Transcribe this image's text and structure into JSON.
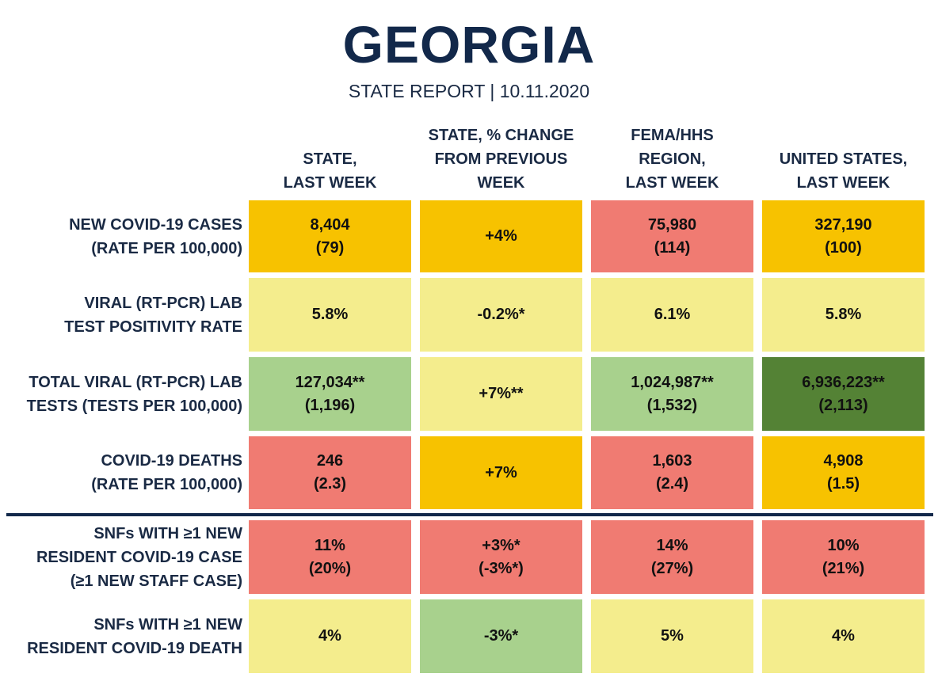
{
  "title": "GEORGIA",
  "subtitle": "STATE REPORT | 10.11.2020",
  "columns": [
    "STATE,\nLAST WEEK",
    "STATE, % CHANGE\nFROM PREVIOUS\nWEEK",
    "FEMA/HHS\nREGION,\nLAST WEEK",
    "UNITED STATES,\nLAST WEEK"
  ],
  "rows": [
    {
      "label": "NEW COVID-19 CASES\n(RATE PER 100,000)",
      "cells": [
        {
          "text": "8,404\n(79)",
          "color": "#f7c200"
        },
        {
          "text": "+4%",
          "color": "#f7c200"
        },
        {
          "text": "75,980\n(114)",
          "color": "#f07b72"
        },
        {
          "text": "327,190\n(100)",
          "color": "#f7c200"
        }
      ]
    },
    {
      "label": "VIRAL (RT-PCR) LAB\nTEST POSITIVITY RATE",
      "cells": [
        {
          "text": "5.8%",
          "color": "#f4ed8d"
        },
        {
          "text": "-0.2%*",
          "color": "#f4ed8d"
        },
        {
          "text": "6.1%",
          "color": "#f4ed8d"
        },
        {
          "text": "5.8%",
          "color": "#f4ed8d"
        }
      ]
    },
    {
      "label": "TOTAL VIRAL (RT-PCR) LAB\nTESTS (TESTS PER 100,000)",
      "cells": [
        {
          "text": "127,034**\n(1,196)",
          "color": "#a8d18d"
        },
        {
          "text": "+7%**",
          "color": "#f4ed8d"
        },
        {
          "text": "1,024,987**\n(1,532)",
          "color": "#a8d18d"
        },
        {
          "text": "6,936,223**\n(2,113)",
          "color": "#548235"
        }
      ]
    },
    {
      "label": "COVID-19 DEATHS\n(RATE PER 100,000)",
      "cells": [
        {
          "text": "246\n(2.3)",
          "color": "#f07b72"
        },
        {
          "text": "+7%",
          "color": "#f7c200"
        },
        {
          "text": "1,603\n(2.4)",
          "color": "#f07b72"
        },
        {
          "text": "4,908\n(1.5)",
          "color": "#f7c200"
        }
      ]
    },
    {
      "label": "SNFs WITH ≥1 NEW\nRESIDENT COVID-19 CASE\n(≥1 NEW STAFF CASE)",
      "cells": [
        {
          "text": "11%\n(20%)",
          "color": "#f07b72"
        },
        {
          "text": "+3%*\n(-3%*)",
          "color": "#f07b72"
        },
        {
          "text": "14%\n(27%)",
          "color": "#f07b72"
        },
        {
          "text": "10%\n(21%)",
          "color": "#f07b72"
        }
      ]
    },
    {
      "label": "SNFs WITH ≥1 NEW\nRESIDENT COVID-19 DEATH",
      "cells": [
        {
          "text": "4%",
          "color": "#f4ed8d"
        },
        {
          "text": "-3%*",
          "color": "#a8d18d"
        },
        {
          "text": "5%",
          "color": "#f4ed8d"
        },
        {
          "text": "4%",
          "color": "#f4ed8d"
        }
      ]
    }
  ]
}
